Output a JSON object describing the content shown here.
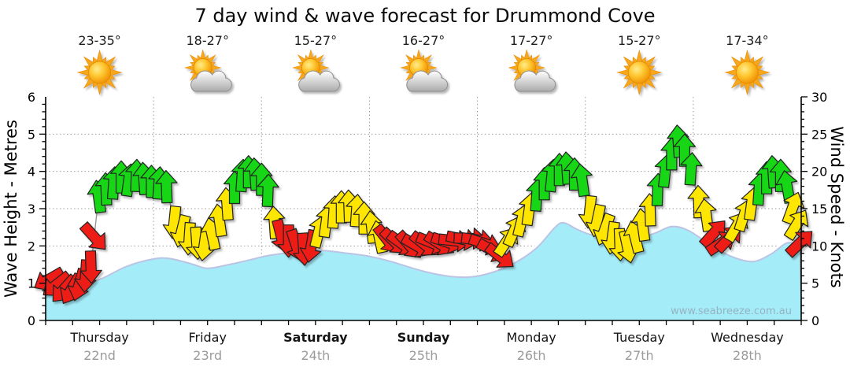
{
  "title": "7 day wind & wave forecast for Drummond Cove",
  "watermark": "www.seabreeze.com.au",
  "axes": {
    "wave_label": "Wave Height - Metres",
    "wind_label": "Wind Speed - Knots",
    "wave_ticks": [
      0,
      1,
      2,
      3,
      4,
      5,
      6
    ],
    "wind_ticks": [
      0,
      5,
      10,
      15,
      20,
      25,
      30
    ]
  },
  "days": [
    {
      "name": "Thursday",
      "date": "22nd",
      "temp": "23-35°",
      "icon": "sun",
      "bold": false
    },
    {
      "name": "Friday",
      "date": "23rd",
      "temp": "18-27°",
      "icon": "sun-cloud",
      "bold": false
    },
    {
      "name": "Saturday",
      "date": "24th",
      "temp": "15-27°",
      "icon": "sun-cloud",
      "bold": true
    },
    {
      "name": "Sunday",
      "date": "25th",
      "temp": "16-27°",
      "icon": "sun-cloud",
      "bold": true
    },
    {
      "name": "Monday",
      "date": "26th",
      "temp": "17-27°",
      "icon": "sun-cloud",
      "bold": false
    },
    {
      "name": "Tuesday",
      "date": "27th",
      "temp": "15-27°",
      "icon": "sun",
      "bold": false
    },
    {
      "name": "Wednesday",
      "date": "28th",
      "temp": "17-34°",
      "icon": "sun",
      "bold": false
    }
  ],
  "colors": {
    "wave_fill": "#a5ecf9",
    "wave_line": "#bcc4e4",
    "arrow_red": "#ed1c16",
    "arrow_yellow": "#ffe600",
    "arrow_green": "#15d615",
    "arrow_outline": "#222222",
    "grid": "#9e9e9e",
    "axis": "#000000",
    "connector": "#999999"
  },
  "chart_data": {
    "type": "area",
    "title": "7 day wind & wave forecast for Drummond Cove",
    "x_categories": [
      "Thursday 22nd",
      "Friday 23rd",
      "Saturday 24th",
      "Sunday 25th",
      "Monday 26th",
      "Tuesday 27th",
      "Wednesday 28th"
    ],
    "x_unit": "days (t = days since Thursday 00:00)",
    "y_left": {
      "label": "Wave Height - Metres",
      "range": [
        0,
        6
      ]
    },
    "y_right": {
      "label": "Wind Speed - Knots",
      "range": [
        0,
        30
      ]
    },
    "grid": "dotted, horizontal each metre, vertical each day boundary",
    "wave_height_m": [
      [
        0,
        0.78
      ],
      [
        0.25,
        0.9
      ],
      [
        0.5,
        1.1
      ],
      [
        0.75,
        1.45
      ],
      [
        1.0,
        1.65
      ],
      [
        1.15,
        1.66
      ],
      [
        1.35,
        1.52
      ],
      [
        1.5,
        1.4
      ],
      [
        1.7,
        1.5
      ],
      [
        1.9,
        1.63
      ],
      [
        2.1,
        1.76
      ],
      [
        2.5,
        1.88
      ],
      [
        2.8,
        1.8
      ],
      [
        3.0,
        1.72
      ],
      [
        3.2,
        1.58
      ],
      [
        3.5,
        1.32
      ],
      [
        3.75,
        1.18
      ],
      [
        3.95,
        1.17
      ],
      [
        4.15,
        1.3
      ],
      [
        4.35,
        1.55
      ],
      [
        4.55,
        1.95
      ],
      [
        4.72,
        2.5
      ],
      [
        4.8,
        2.62
      ],
      [
        4.92,
        2.45
      ],
      [
        5.05,
        2.3
      ],
      [
        5.25,
        2.17
      ],
      [
        5.45,
        2.16
      ],
      [
        5.65,
        2.35
      ],
      [
        5.8,
        2.52
      ],
      [
        5.95,
        2.42
      ],
      [
        6.15,
        2.05
      ],
      [
        6.35,
        1.72
      ],
      [
        6.55,
        1.58
      ],
      [
        6.72,
        1.78
      ],
      [
        6.87,
        2.08
      ],
      [
        7,
        2.0
      ]
    ],
    "wind_arrows_t_knots_dir_color": [
      [
        0.03,
        5.5,
        240,
        "r"
      ],
      [
        0.1,
        4.8,
        232,
        "r"
      ],
      [
        0.17,
        4.2,
        222,
        "r"
      ],
      [
        0.24,
        4.2,
        210,
        "r"
      ],
      [
        0.31,
        4.8,
        196,
        "r"
      ],
      [
        0.37,
        6.0,
        184,
        "r"
      ],
      [
        0.42,
        7.2,
        178,
        "r"
      ],
      [
        0.45,
        11.2,
        138,
        "r"
      ],
      [
        0.49,
        16.6,
        352,
        "g"
      ],
      [
        0.56,
        17.6,
        358,
        "g"
      ],
      [
        0.63,
        18.4,
        4,
        "g"
      ],
      [
        0.7,
        19.2,
        0,
        "g"
      ],
      [
        0.77,
        18.8,
        8,
        "g"
      ],
      [
        0.84,
        19.4,
        2,
        "g"
      ],
      [
        0.91,
        19.0,
        356,
        "g"
      ],
      [
        0.98,
        18.6,
        0,
        "g"
      ],
      [
        1.05,
        18.4,
        4,
        "g"
      ],
      [
        1.12,
        17.9,
        358,
        "g"
      ],
      [
        1.19,
        13.2,
        186,
        "y"
      ],
      [
        1.26,
        12.0,
        194,
        "y"
      ],
      [
        1.33,
        11.0,
        184,
        "y"
      ],
      [
        1.4,
        10.4,
        176,
        "y"
      ],
      [
        1.47,
        10.2,
        188,
        "y"
      ],
      [
        1.54,
        11.6,
        348,
        "y"
      ],
      [
        1.61,
        13.4,
        352,
        "y"
      ],
      [
        1.68,
        15.6,
        356,
        "y"
      ],
      [
        1.75,
        17.8,
        0,
        "g"
      ],
      [
        1.82,
        19.4,
        4,
        "g"
      ],
      [
        1.88,
        19.9,
        0,
        "g"
      ],
      [
        1.94,
        19.6,
        356,
        "g"
      ],
      [
        2.0,
        18.9,
        0,
        "g"
      ],
      [
        2.06,
        17.4,
        2,
        "g"
      ],
      [
        2.12,
        13.1,
        356,
        "y"
      ],
      [
        2.18,
        11.4,
        166,
        "r"
      ],
      [
        2.25,
        10.7,
        180,
        "r"
      ],
      [
        2.32,
        10.1,
        162,
        "r"
      ],
      [
        2.39,
        9.6,
        176,
        "r"
      ],
      [
        2.46,
        10.0,
        190,
        "r"
      ],
      [
        2.53,
        11.9,
        14,
        "y"
      ],
      [
        2.6,
        13.3,
        8,
        "y"
      ],
      [
        2.67,
        14.5,
        4,
        "y"
      ],
      [
        2.74,
        15.2,
        0,
        "y"
      ],
      [
        2.81,
        15.3,
        358,
        "y"
      ],
      [
        2.88,
        14.7,
        4,
        "y"
      ],
      [
        2.95,
        13.7,
        0,
        "y"
      ],
      [
        3.02,
        12.5,
        354,
        "y"
      ],
      [
        3.09,
        11.2,
        348,
        "y"
      ],
      [
        3.16,
        10.9,
        142,
        "r"
      ],
      [
        3.23,
        10.6,
        134,
        "r"
      ],
      [
        3.3,
        10.3,
        126,
        "r"
      ],
      [
        3.37,
        10.1,
        138,
        "r"
      ],
      [
        3.44,
        10.0,
        120,
        "r"
      ],
      [
        3.51,
        10.2,
        128,
        "r"
      ],
      [
        3.58,
        10.4,
        112,
        "r"
      ],
      [
        3.65,
        10.3,
        122,
        "r"
      ],
      [
        3.72,
        10.5,
        108,
        "r"
      ],
      [
        3.79,
        10.7,
        96,
        "r"
      ],
      [
        3.86,
        10.9,
        102,
        "r"
      ],
      [
        3.93,
        11.0,
        92,
        "r"
      ],
      [
        4.0,
        10.8,
        98,
        "r"
      ],
      [
        4.07,
        10.3,
        108,
        "r"
      ],
      [
        4.14,
        9.4,
        118,
        "r"
      ],
      [
        4.21,
        8.6,
        128,
        "r"
      ],
      [
        4.27,
        10.6,
        34,
        "y"
      ],
      [
        4.34,
        12.0,
        24,
        "y"
      ],
      [
        4.41,
        13.4,
        14,
        "y"
      ],
      [
        4.48,
        14.9,
        8,
        "y"
      ],
      [
        4.55,
        16.8,
        4,
        "g"
      ],
      [
        4.62,
        18.3,
        0,
        "g"
      ],
      [
        4.69,
        19.4,
        6,
        "g"
      ],
      [
        4.76,
        20.2,
        0,
        "g"
      ],
      [
        4.83,
        20.4,
        356,
        "g"
      ],
      [
        4.9,
        19.6,
        0,
        "g"
      ],
      [
        4.97,
        18.8,
        352,
        "g"
      ],
      [
        5.04,
        14.6,
        186,
        "y"
      ],
      [
        5.11,
        13.4,
        192,
        "y"
      ],
      [
        5.18,
        12.2,
        200,
        "y"
      ],
      [
        5.25,
        11.1,
        188,
        "y"
      ],
      [
        5.32,
        10.2,
        178,
        "y"
      ],
      [
        5.39,
        9.9,
        168,
        "y"
      ],
      [
        5.46,
        11.2,
        346,
        "y"
      ],
      [
        5.53,
        12.8,
        352,
        "y"
      ],
      [
        5.6,
        14.8,
        358,
        "y"
      ],
      [
        5.67,
        17.5,
        2,
        "g"
      ],
      [
        5.74,
        20.0,
        6,
        "g"
      ],
      [
        5.8,
        22.3,
        0,
        "g"
      ],
      [
        5.86,
        24.0,
        356,
        "g"
      ],
      [
        5.92,
        22.8,
        0,
        "g"
      ],
      [
        5.98,
        20.3,
        4,
        "g"
      ],
      [
        6.05,
        15.9,
        358,
        "y"
      ],
      [
        6.12,
        14.1,
        352,
        "y"
      ],
      [
        6.19,
        11.7,
        42,
        "r"
      ],
      [
        6.26,
        10.4,
        56,
        "r"
      ],
      [
        6.33,
        11.0,
        44,
        "r"
      ],
      [
        6.4,
        12.6,
        30,
        "y"
      ],
      [
        6.47,
        14.1,
        18,
        "y"
      ],
      [
        6.54,
        15.6,
        8,
        "y"
      ],
      [
        6.61,
        17.6,
        4,
        "g"
      ],
      [
        6.68,
        19.1,
        0,
        "g"
      ],
      [
        6.74,
        19.9,
        356,
        "g"
      ],
      [
        6.81,
        19.4,
        0,
        "g"
      ],
      [
        6.87,
        17.9,
        350,
        "g"
      ],
      [
        6.92,
        15.1,
        20,
        "y"
      ],
      [
        6.96,
        12.9,
        32,
        "y"
      ],
      [
        6.99,
        10.4,
        46,
        "r"
      ]
    ],
    "wind_line_end_t_knots": [
      7.0,
      1.5
    ],
    "legend": "arrow colour = wind strength band (red light, yellow moderate, green fresh); arrow direction = direction wind is blowing toward"
  }
}
